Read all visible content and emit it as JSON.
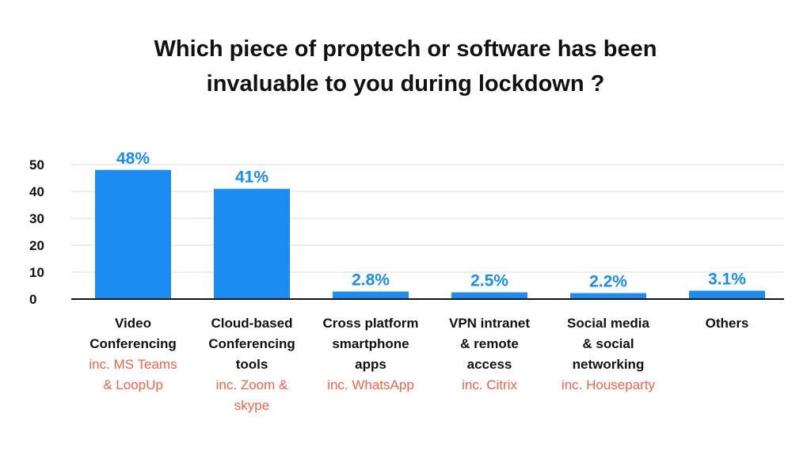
{
  "title_lines": [
    "Which piece of proptech or software has been",
    "invaluable to you during lockdown ?"
  ],
  "colors": {
    "bar": "#1a8cf2",
    "data_label": "#1a8cf2",
    "subtitle": "#f0644c",
    "grid": "#d9d9d9",
    "axis": "#111111"
  },
  "chart_data": {
    "type": "bar",
    "title": "Which piece of proptech or software has been invaluable to you during lockdown ?",
    "categories": [
      {
        "lines": [
          "Video",
          "Conferencing"
        ],
        "sub": [
          "inc. MS Teams",
          "& LoopUp"
        ]
      },
      {
        "lines": [
          "Cloud-based",
          "Conferencing",
          "tools"
        ],
        "sub": [
          "inc. Zoom &",
          "skype"
        ]
      },
      {
        "lines": [
          "Cross platform",
          "smartphone",
          "apps"
        ],
        "sub": [
          "inc. WhatsApp"
        ]
      },
      {
        "lines": [
          "VPN intranet",
          "& remote",
          "access"
        ],
        "sub": [
          "inc. Citrix"
        ]
      },
      {
        "lines": [
          "Social media",
          "& social",
          "networking"
        ],
        "sub": [
          "inc. Houseparty"
        ]
      },
      {
        "lines": [
          "Others"
        ],
        "sub": []
      }
    ],
    "values": [
      48,
      41,
      2.8,
      2.5,
      2.2,
      3.1
    ],
    "data_labels": [
      "48%",
      "41%",
      "2.8%",
      "2.5%",
      "2.2%",
      "3.1%"
    ],
    "y_ticks": [
      0,
      10,
      20,
      30,
      40,
      50
    ],
    "ylim": [
      0,
      50
    ],
    "grid": true
  }
}
